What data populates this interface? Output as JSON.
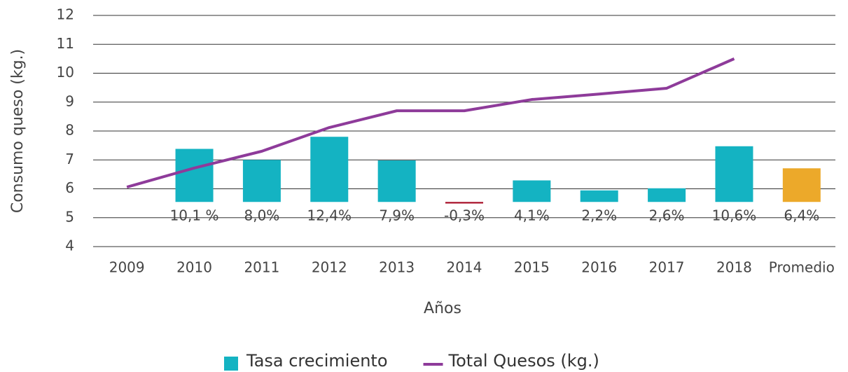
{
  "chart_data": {
    "type": "bar-line",
    "x_label": "Años",
    "y_label": "Consumo queso (kg.)",
    "categories": [
      "2009",
      "2010",
      "2011",
      "2012",
      "2013",
      "2014",
      "2015",
      "2016",
      "2017",
      "2018",
      "Promedio"
    ],
    "series": [
      {
        "name": "Tasa crecimiento",
        "type": "bar",
        "axis": "y2",
        "color": "#14b3c2",
        "colors": [
          null,
          "#14b3c2",
          "#14b3c2",
          "#14b3c2",
          "#14b3c2",
          "#a8122a",
          "#14b3c2",
          "#14b3c2",
          "#14b3c2",
          "#14b3c2",
          "#eca92a"
        ],
        "values": [
          null,
          10.1,
          8.0,
          12.4,
          7.9,
          -0.3,
          4.1,
          2.2,
          2.6,
          10.6,
          6.4
        ],
        "value_labels": [
          null,
          "10,1 %",
          "8,0%",
          "12,4%",
          "7,9%",
          "-0,3%",
          "4,1%",
          "2,2%",
          "2,6%",
          "10,6%",
          "6,4%"
        ]
      },
      {
        "name": "Total Quesos (kg.)",
        "type": "line",
        "color": "#8e3b9a",
        "values": [
          6.06,
          6.72,
          7.3,
          8.12,
          8.7,
          8.7,
          9.09,
          9.28,
          9.48,
          10.5,
          null
        ]
      }
    ],
    "ylim": [
      4,
      12
    ],
    "yticks": [
      4,
      5,
      6,
      7,
      8,
      9,
      10,
      11,
      12
    ],
    "y2lim": [
      -8.5,
      35.5
    ],
    "grid": true,
    "legend": "bottom"
  }
}
